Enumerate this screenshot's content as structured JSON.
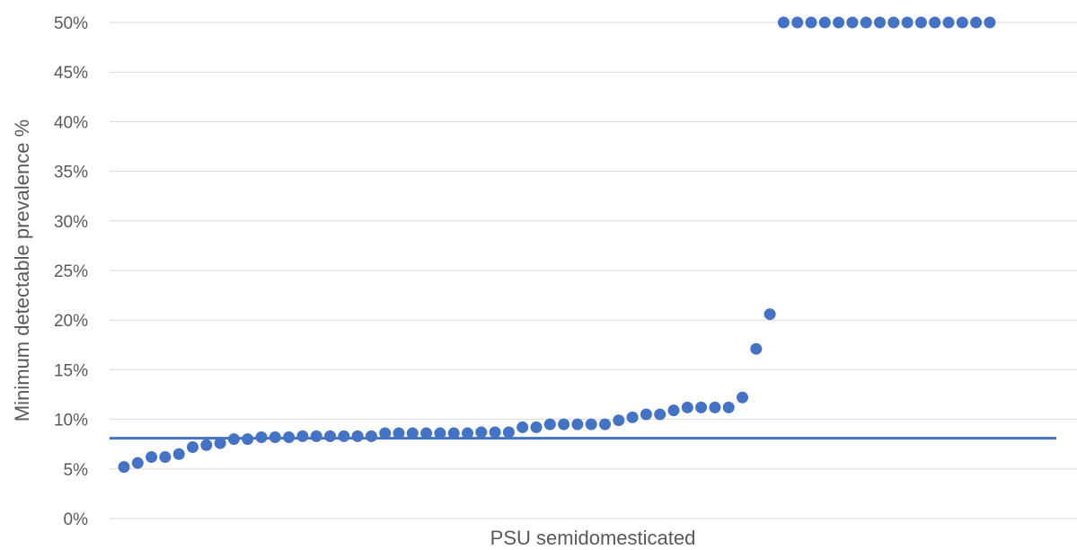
{
  "chart_data": {
    "type": "scatter",
    "title": "",
    "xlabel": "PSU semidomesticated",
    "ylabel": "Minimum detectable prevalence %",
    "ylim": [
      0,
      50
    ],
    "yticks": [
      "0%",
      "5%",
      "10%",
      "15%",
      "20%",
      "25%",
      "30%",
      "35%",
      "40%",
      "45%",
      "50%"
    ],
    "grid": true,
    "legend": "none",
    "colors": {
      "points": "#4472c4",
      "reference_line": "#4472c4",
      "grid": "#d9d9d9",
      "text": "#595959"
    },
    "series": [
      {
        "x": [
          1,
          2,
          3,
          4,
          5,
          6,
          7,
          8,
          9,
          10,
          11,
          12,
          13,
          14,
          15,
          16,
          17,
          18,
          19,
          20,
          21,
          22,
          23,
          24,
          25,
          26,
          27,
          28,
          29,
          30,
          31,
          32,
          33,
          34,
          35,
          36,
          37,
          38,
          39,
          40,
          41,
          42,
          43,
          44,
          45,
          46,
          47,
          48,
          49,
          50,
          51,
          52,
          53,
          54,
          55,
          56,
          57,
          58,
          59,
          60,
          61,
          62,
          63,
          64,
          65,
          66,
          67,
          68,
          69,
          70
        ],
        "values": [
          5.2,
          5.6,
          6.2,
          6.2,
          6.5,
          7.2,
          7.4,
          7.6,
          8.0,
          8.0,
          8.2,
          8.2,
          8.2,
          8.3,
          8.3,
          8.3,
          8.3,
          8.3,
          8.3,
          8.6,
          8.6,
          8.6,
          8.6,
          8.6,
          8.6,
          8.6,
          8.7,
          8.7,
          8.7,
          9.2,
          9.2,
          9.5,
          9.5,
          9.5,
          9.5,
          9.5,
          9.9,
          10.2,
          10.5,
          10.5,
          10.9,
          11.2,
          11.2,
          11.2,
          11.2,
          12.2,
          17.1,
          20.6,
          50,
          50,
          50,
          50,
          50,
          50,
          50,
          50,
          50,
          50,
          50,
          50,
          50,
          50,
          50,
          50,
          null,
          null,
          null,
          null,
          null,
          null
        ]
      }
    ],
    "reference_line": {
      "y": 8.1
    }
  }
}
